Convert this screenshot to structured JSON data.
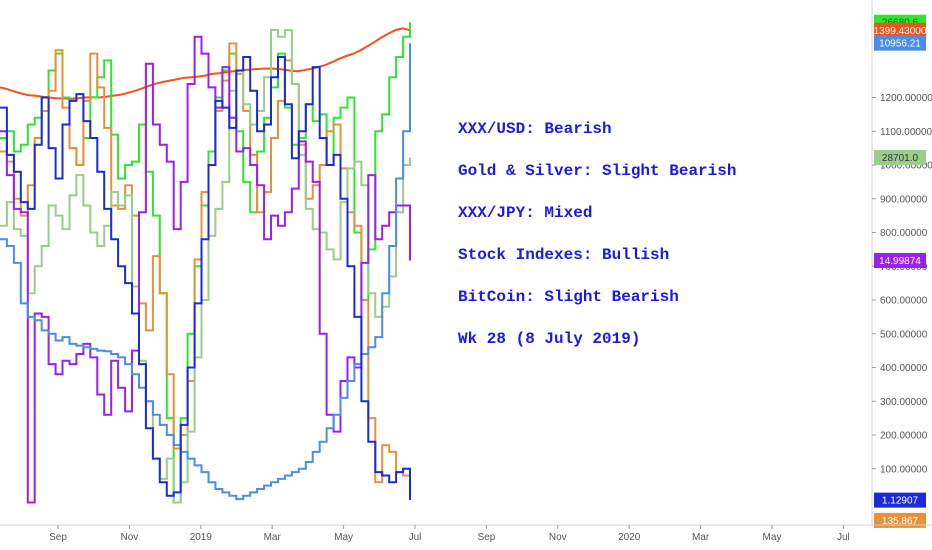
{
  "chart_data": {
    "type": "line",
    "title": "",
    "xlabel": "",
    "ylabel": "",
    "x_ticks": [
      "Sep",
      "Nov",
      "2019",
      "Mar",
      "May",
      "Jul",
      "Sep",
      "Nov",
      "2020",
      "Mar",
      "May",
      "Jul"
    ],
    "y_ticks": [
      "1200.00000",
      "1100.00000",
      "1000.00000",
      "900.00000",
      "800.00000",
      "700.00000",
      "600.00000",
      "500.00000",
      "400.00000",
      "300.00000",
      "200.00000",
      "100.00000"
    ],
    "ylim": [
      -100,
      1410
    ],
    "annotations": [
      "XXX/USD: Bearish",
      "Gold & Silver:  Slight Bearish",
      "XXX/JPY: Mixed",
      "Stock Indexes: Bullish",
      "BitCoin: Slight Bearish",
      "Wk 28 (8 July 2019)"
    ],
    "price_badges": [
      {
        "label": "26680.6",
        "color": "#2ee62e",
        "text_color": "#1a6b1a",
        "value": 1423
      },
      {
        "label": "1399.43000",
        "color": "#f4511e",
        "text_color": "#ffffff",
        "value": 1399
      },
      {
        "label": "10956.21",
        "color": "#4a8ee8",
        "text_color": "#ffffff",
        "value": 1361
      },
      {
        "label": "28701.0",
        "color": "#9acd8a",
        "text_color": "#333333",
        "value": 1022
      },
      {
        "label": "14.99874",
        "color": "#9b1ff0",
        "text_color": "#ffffff",
        "value": 717
      },
      {
        "label": "1.12907",
        "color": "#1a2bd8",
        "text_color": "#ffffff",
        "value": 7
      },
      {
        "label": "135.867",
        "color": "#e8913a",
        "text_color": "#ffffff",
        "value": -53
      }
    ],
    "series": [
      {
        "color": "#f4511e",
        "values": [
          1230,
          1225,
          1218,
          1212,
          1207,
          1205,
          1202,
          1200,
          1198,
          1197,
          1196,
          1198,
          1200,
          1201,
          1200,
          1202,
          1205,
          1208,
          1213,
          1219,
          1226,
          1234,
          1241,
          1246,
          1250,
          1254,
          1258,
          1260,
          1262,
          1265,
          1270,
          1272,
          1275,
          1278,
          1280,
          1282,
          1284,
          1285,
          1286,
          1285,
          1283,
          1280,
          1278,
          1281,
          1285,
          1290,
          1296,
          1305,
          1315,
          1323,
          1330,
          1340,
          1352,
          1365,
          1378,
          1390,
          1400,
          1405,
          1399
        ],
        "step": false
      },
      {
        "color": "#2ee62e",
        "values": [
          1080,
          1100,
          1040,
          1060,
          1120,
          1140,
          1200,
          1280,
          1330,
          1200,
          1050,
          1000,
          1080,
          1200,
          1260,
          1310,
          1090,
          960,
          1000,
          1010,
          1120,
          980,
          850,
          620,
          250,
          0,
          250,
          500,
          700,
          880,
          1040,
          1200,
          1280,
          1330,
          1100,
          950,
          860,
          1040,
          1140,
          1230,
          1330,
          1170,
          1060,
          1080,
          1180,
          1130,
          1150,
          1000,
          1140,
          1170,
          1200,
          800,
          600,
          750,
          1100,
          1150,
          1260,
          1320,
          1380,
          1423
        ]
      },
      {
        "color": "#e8913a",
        "values": [
          1040,
          1010,
          900,
          850,
          940,
          1080,
          1160,
          1220,
          1340,
          1170,
          1050,
          1000,
          1190,
          1330,
          1230,
          1110,
          880,
          870,
          940,
          850,
          590,
          510,
          730,
          620,
          380,
          160,
          200,
          360,
          720,
          920,
          1000,
          1160,
          1250,
          1360,
          1270,
          1160,
          1030,
          860,
          920,
          1080,
          1190,
          1310,
          1240,
          1060,
          900,
          940,
          1000,
          1100,
          1120,
          990,
          860,
          820,
          600,
          250,
          60,
          170,
          150,
          90,
          80,
          60
        ]
      },
      {
        "color": "#9acd8a",
        "values": [
          820,
          890,
          810,
          790,
          620,
          700,
          760,
          880,
          850,
          810,
          910,
          970,
          880,
          800,
          760,
          820,
          920,
          880,
          910,
          640,
          420,
          300,
          130,
          70,
          130,
          0,
          60,
          210,
          430,
          600,
          790,
          870,
          950,
          1220,
          1280,
          1180,
          1120,
          1160,
          1260,
          1400,
          1380,
          1400,
          1240,
          1030,
          870,
          810,
          800,
          750,
          720,
          890,
          990,
          1010,
          940,
          620,
          550,
          580,
          670,
          860,
          1000,
          1022
        ]
      },
      {
        "color": "#9b1ff0",
        "values": [
          1100,
          970,
          870,
          860,
          0,
          560,
          550,
          410,
          380,
          420,
          410,
          440,
          470,
          430,
          320,
          260,
          420,
          340,
          270,
          450,
          860,
          1300,
          1120,
          1060,
          1010,
          810,
          950,
          1240,
          1380,
          1330,
          1230,
          1170,
          1290,
          1140,
          1040,
          1050,
          1000,
          940,
          780,
          850,
          820,
          860,
          930,
          1070,
          1010,
          950,
          500,
          260,
          210,
          360,
          430,
          400,
          710,
          970,
          780,
          820,
          860,
          880,
          880,
          717
        ]
      },
      {
        "color": "#4a8ee8",
        "values": [
          780,
          760,
          710,
          590,
          550,
          540,
          510,
          500,
          480,
          490,
          470,
          465,
          460,
          455,
          450,
          448,
          440,
          430,
          410,
          380,
          340,
          300,
          260,
          230,
          200,
          170,
          150,
          130,
          110,
          90,
          60,
          40,
          30,
          20,
          10,
          20,
          30,
          40,
          50,
          60,
          70,
          80,
          90,
          100,
          120,
          150,
          180,
          220,
          260,
          310,
          360,
          410,
          440,
          460,
          490,
          620,
          760,
          960,
          1100,
          1361
        ]
      },
      {
        "color": "#1a2bd8",
        "values": [
          1170,
          1030,
          980,
          890,
          870,
          1060,
          1200,
          1050,
          960,
          1120,
          1190,
          1210,
          1130,
          1080,
          980,
          870,
          780,
          700,
          650,
          560,
          410,
          220,
          130,
          60,
          20,
          30,
          230,
          400,
          590,
          780,
          1000,
          1190,
          1170,
          1110,
          1280,
          1320,
          1220,
          1100,
          1120,
          1260,
          1320,
          1180,
          1020,
          1100,
          1180,
          1290,
          1080,
          1000,
          1030,
          900,
          700,
          550,
          300,
          180,
          90,
          80,
          60,
          90,
          100,
          7
        ]
      }
    ]
  }
}
